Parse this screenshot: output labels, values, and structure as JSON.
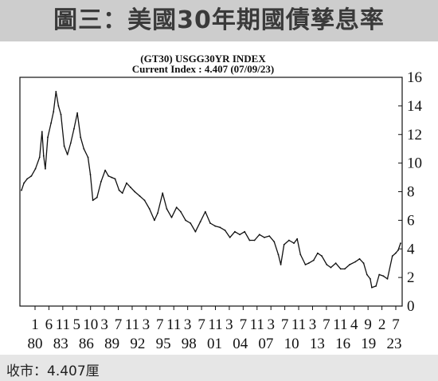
{
  "title": "圖三：美國30年期國債孳息率",
  "header": {
    "index_line": "(GT30) USGG30YR INDEX",
    "current_line": "Current Index : 4.407 (07/09/23)"
  },
  "footer": {
    "close_text": "收市：4.407厘"
  },
  "chart_data": {
    "type": "line",
    "title": "(GT30) USGG30YR INDEX",
    "subtitle": "Current Index : 4.407 (07/09/23)",
    "xlabel": "",
    "ylabel": "",
    "ylim": [
      0,
      16
    ],
    "xlim": [
      1977.6,
      2023.8
    ],
    "yticks": [
      "0",
      "2",
      "4",
      "6",
      "8",
      "10",
      "12",
      "14",
      "16"
    ],
    "xticks_month": [
      "1",
      "6",
      "11",
      "5",
      "10",
      "3",
      "7",
      "11",
      "3",
      "7",
      "11",
      "3",
      "7",
      "11",
      "3",
      "7",
      "11",
      "3",
      "7",
      "11",
      "3",
      "7",
      "11",
      "4",
      "9",
      "2",
      "7"
    ],
    "xticks_year": [
      {
        "label": "80",
        "x": 1980.0
      },
      {
        "label": "83",
        "x": 1983.5
      },
      {
        "label": "86",
        "x": 1986.9
      },
      {
        "label": "89",
        "x": 1989.7
      },
      {
        "label": "92",
        "x": 1992.9
      },
      {
        "label": "95",
        "x": 1995.8
      },
      {
        "label": "98",
        "x": 1998.8
      },
      {
        "label": "01",
        "x": 2001.8
      },
      {
        "label": "04",
        "x": 2004.8
      },
      {
        "label": "07",
        "x": 2007.8
      },
      {
        "label": "10",
        "x": 2010.8
      },
      {
        "label": "13",
        "x": 2013.8
      },
      {
        "label": "16",
        "x": 2016.8
      },
      {
        "label": "19",
        "x": 2019.7
      },
      {
        "label": "23",
        "x": 2023.2
      }
    ],
    "grid": false,
    "series": [
      {
        "color": "#111111",
        "x": [
          1977.6,
          1977.9,
          1978.3,
          1978.8,
          1979.3,
          1979.8,
          1980.1,
          1980.3,
          1980.5,
          1980.8,
          1981.2,
          1981.5,
          1981.8,
          1982.1,
          1982.4,
          1982.8,
          1983.2,
          1983.6,
          1984.0,
          1984.4,
          1984.8,
          1985.2,
          1985.7,
          1986.0,
          1986.3,
          1986.8,
          1987.3,
          1987.8,
          1988.2,
          1988.6,
          1989.0,
          1989.5,
          1989.9,
          1990.4,
          1990.9,
          1991.4,
          1992.0,
          1992.6,
          1993.2,
          1993.8,
          1994.2,
          1994.8,
          1995.3,
          1995.9,
          1996.5,
          1997.0,
          1997.6,
          1998.2,
          1998.8,
          1999.4,
          2000.0,
          2000.6,
          2001.2,
          2001.8,
          2002.4,
          2003.0,
          2003.6,
          2004.2,
          2004.8,
          2005.4,
          2006.0,
          2006.6,
          2007.2,
          2007.8,
          2008.4,
          2008.9,
          2009.2,
          2009.6,
          2010.2,
          2010.8,
          2011.2,
          2011.6,
          2012.2,
          2012.6,
          2013.2,
          2013.7,
          2014.2,
          2014.8,
          2015.3,
          2015.9,
          2016.5,
          2017.0,
          2017.6,
          2018.3,
          2018.8,
          2019.3,
          2019.7,
          2020.1,
          2020.3,
          2020.8,
          2021.2,
          2021.7,
          2022.2,
          2022.8,
          2023.2,
          2023.5,
          2023.8
        ],
        "y": [
          8.1,
          8.6,
          8.9,
          9.1,
          9.6,
          10.4,
          12.2,
          10.5,
          9.6,
          11.8,
          12.8,
          13.6,
          15.0,
          14.0,
          13.4,
          11.2,
          10.6,
          11.4,
          12.4,
          13.5,
          11.8,
          11.0,
          10.4,
          9.2,
          7.4,
          7.6,
          8.7,
          9.5,
          9.1,
          9.0,
          8.9,
          8.1,
          7.9,
          8.6,
          8.3,
          8.0,
          7.7,
          7.4,
          6.8,
          6.0,
          6.5,
          7.9,
          6.8,
          6.2,
          6.9,
          6.6,
          6.0,
          5.8,
          5.2,
          5.9,
          6.6,
          5.8,
          5.6,
          5.5,
          5.3,
          4.8,
          5.2,
          5.0,
          5.2,
          4.6,
          4.6,
          5.0,
          4.8,
          4.9,
          4.5,
          3.6,
          2.9,
          4.3,
          4.6,
          4.4,
          4.7,
          3.6,
          2.9,
          3.0,
          3.2,
          3.7,
          3.5,
          2.9,
          2.7,
          3.0,
          2.6,
          2.6,
          2.9,
          3.1,
          3.3,
          3.0,
          2.2,
          1.9,
          1.3,
          1.4,
          2.2,
          2.1,
          1.9,
          3.5,
          3.7,
          3.9,
          4.4
        ]
      }
    ]
  }
}
